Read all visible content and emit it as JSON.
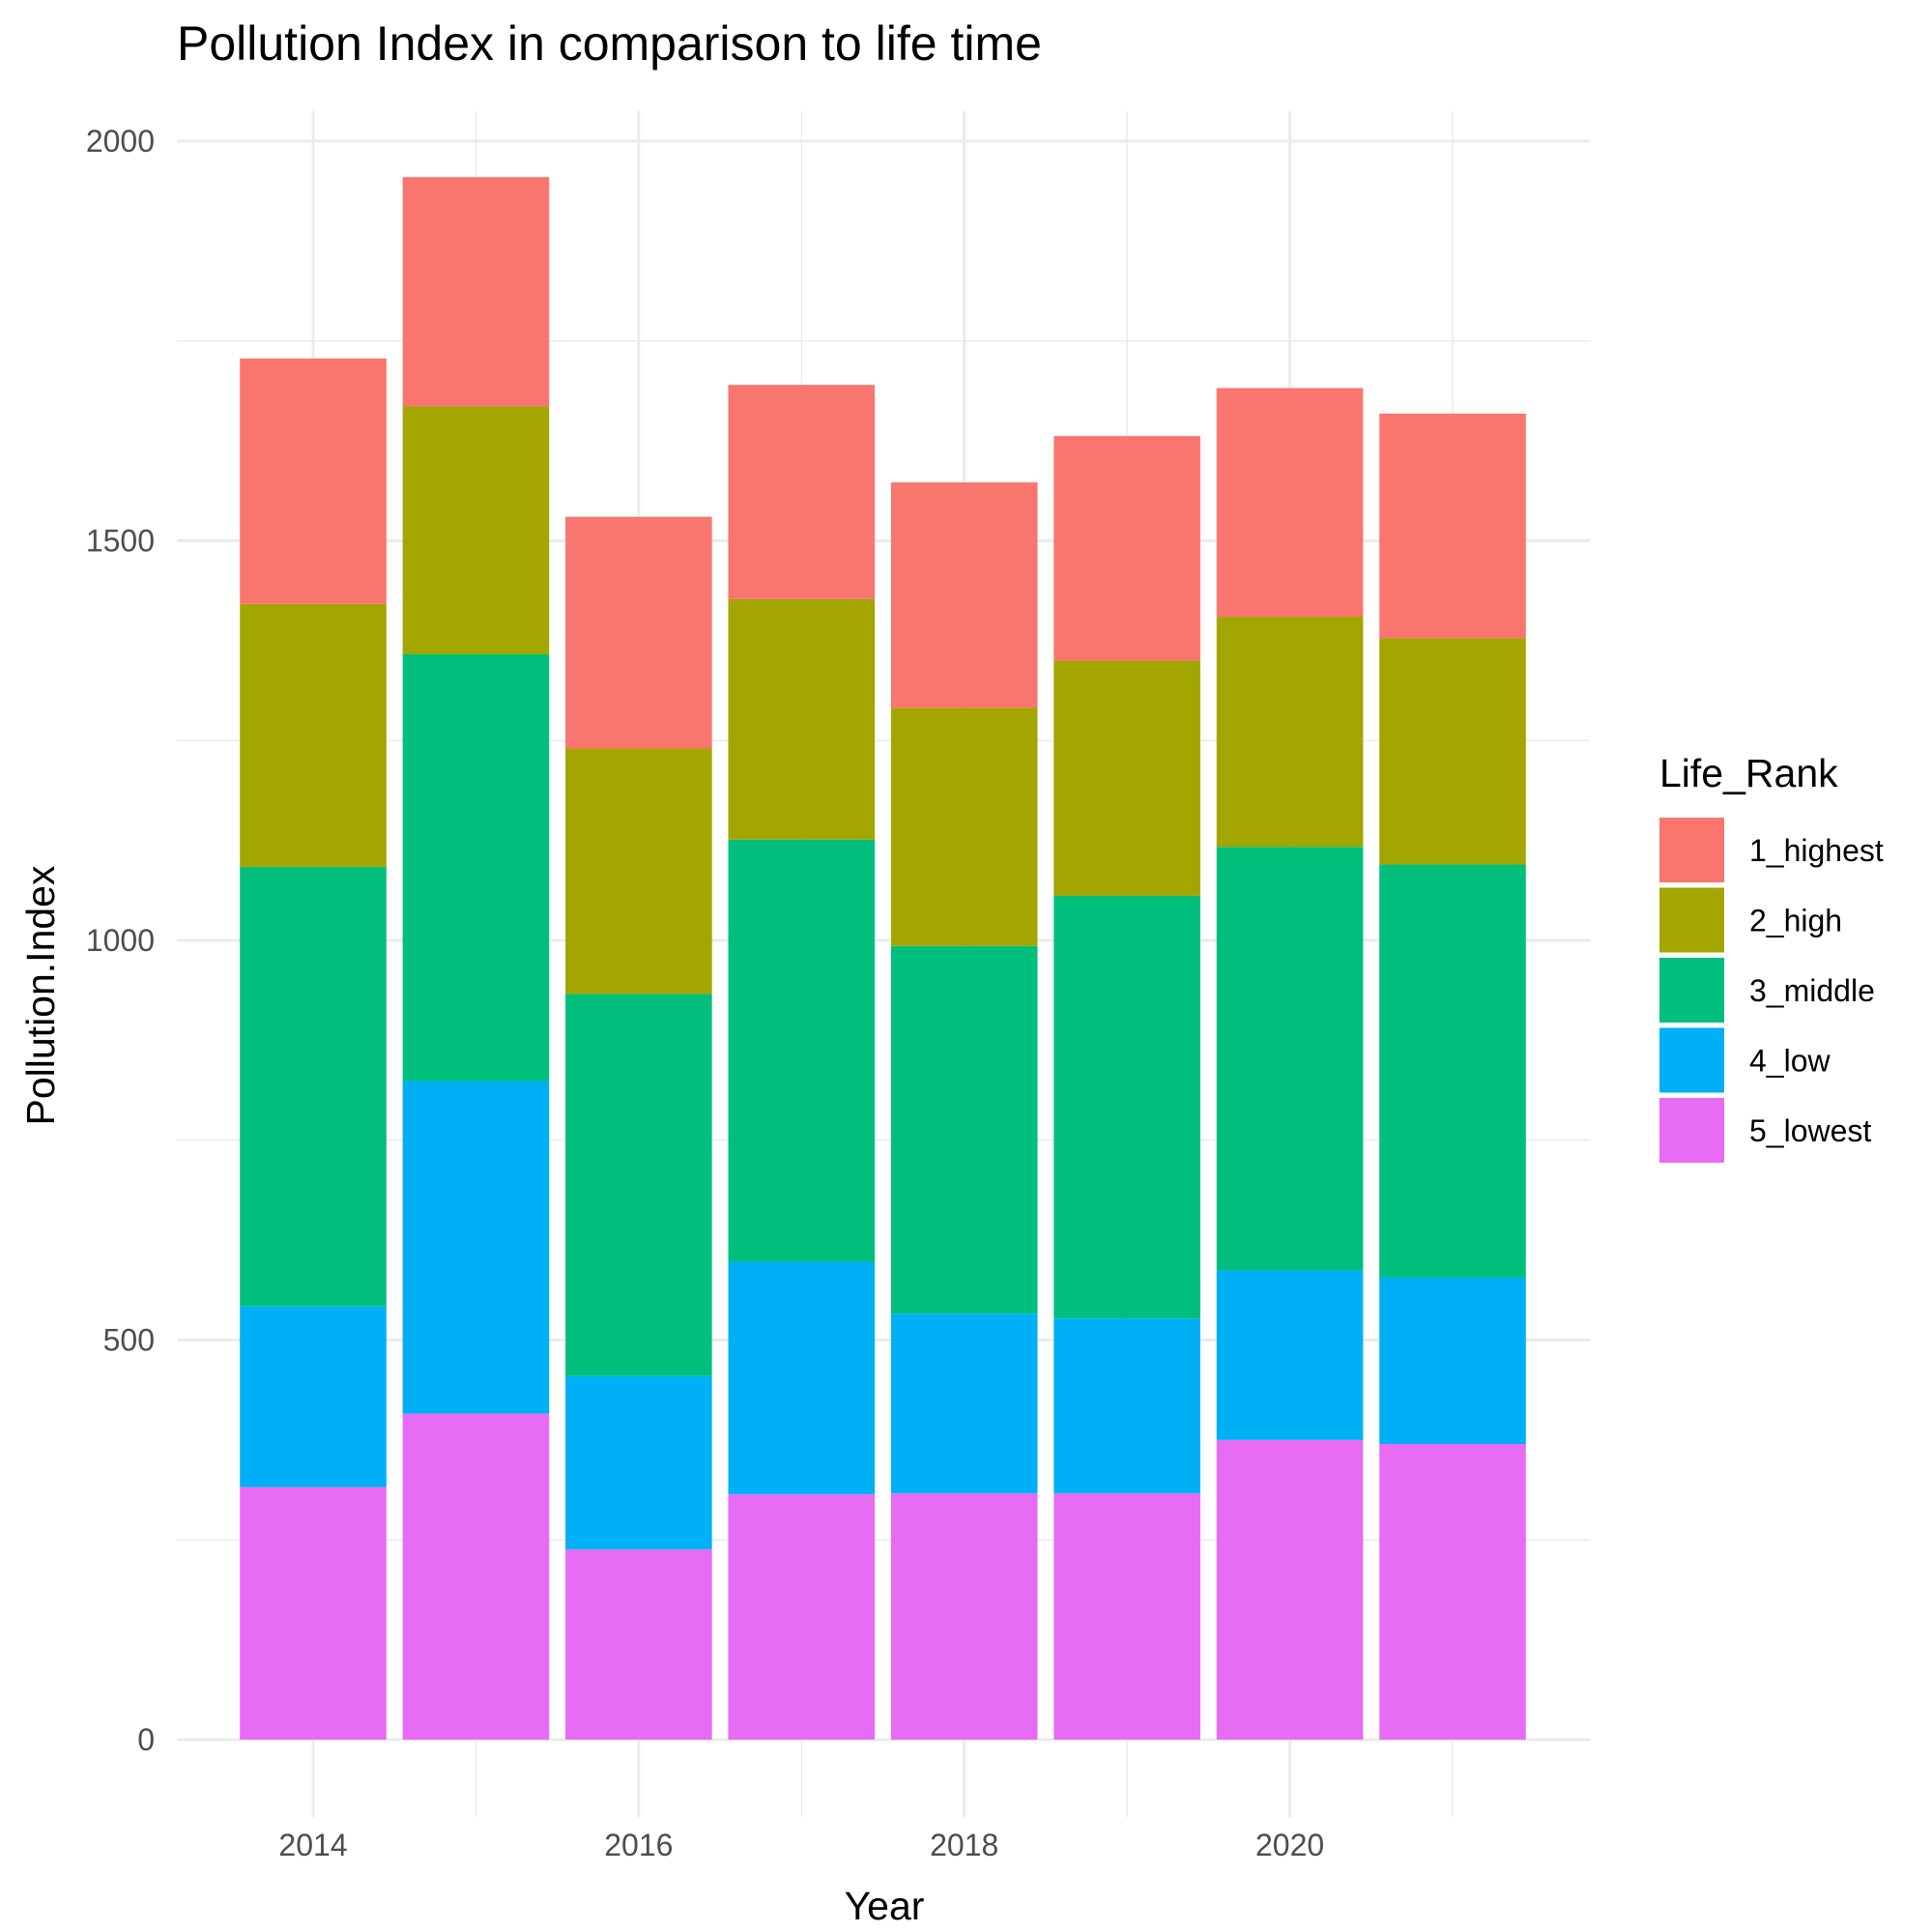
{
  "chart_data": {
    "type": "bar",
    "stacked": true,
    "title": "Pollution Index in comparison to life time",
    "xlabel": "Year",
    "ylabel": "Pollution.Index",
    "x": [
      2014,
      2015,
      2016,
      2017,
      2018,
      2019,
      2020,
      2021
    ],
    "x_ticks": [
      2014,
      2016,
      2018,
      2020
    ],
    "ylim": [
      0,
      2000
    ],
    "y_ticks": [
      0,
      500,
      1000,
      1500,
      2000
    ],
    "grid": true,
    "legend": {
      "title": "Life_Rank",
      "position": "right"
    },
    "series": [
      {
        "name": "5_lowest",
        "color": "#E76BF3",
        "values": [
          316,
          408,
          238,
          307,
          308,
          308,
          375,
          370
        ]
      },
      {
        "name": "4_low",
        "color": "#00B0F6",
        "values": [
          226,
          416,
          217,
          291,
          225,
          219,
          212,
          208
        ]
      },
      {
        "name": "3_middle",
        "color": "#00BF7D",
        "values": [
          550,
          534,
          478,
          528,
          460,
          529,
          530,
          517
        ]
      },
      {
        "name": "2_high",
        "color": "#A3A500",
        "values": [
          329,
          310,
          307,
          301,
          298,
          294,
          288,
          283
        ]
      },
      {
        "name": "1_highest",
        "color": "#F8766D",
        "values": [
          307,
          287,
          290,
          268,
          282,
          281,
          286,
          281
        ]
      }
    ],
    "legend_order": [
      "1_highest",
      "2_high",
      "3_middle",
      "4_low",
      "5_lowest"
    ]
  }
}
